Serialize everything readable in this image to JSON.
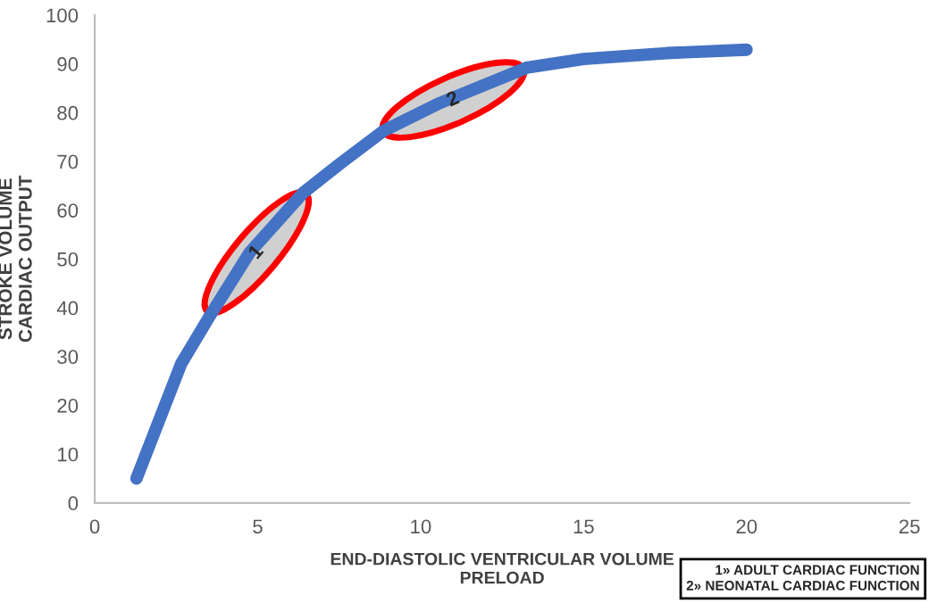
{
  "chart_data": {
    "type": "line",
    "xlabel": "END-DIASTOLIC VENTRICULAR VOLUME\nPRELOAD",
    "ylabel": "STROKE VOLUME\nCARDIAC OUTPUT",
    "x": [
      1.28,
      2.65,
      3.5,
      4.75,
      6.4,
      7.5,
      8.87,
      10.6,
      13.25,
      15,
      17.55,
      20
    ],
    "series": [
      {
        "color": "#4472c4",
        "values": [
          5,
          28.5,
          38,
          51.3,
          63.6,
          69.4,
          76.3,
          82,
          89.2,
          91,
          92.2,
          92.9
        ]
      }
    ],
    "xlim": [
      0,
      25
    ],
    "xticks": [
      0,
      5,
      10,
      15,
      20,
      25
    ],
    "ylim": [
      0,
      100
    ],
    "yticks": [
      0,
      10,
      20,
      30,
      40,
      50,
      60,
      70,
      80,
      90,
      100
    ],
    "grid": false,
    "legend": false,
    "marker": "none",
    "line_style": "solid",
    "annotations": [
      {
        "text": "1",
        "x": 4.97,
        "y": 51.3
      },
      {
        "text": "2",
        "x": 11.0,
        "y": 82.6
      },
      "1» ADULT CARDIAC FUNCTION",
      "2» NEONATAL CARDIAC FUNCTION"
    ]
  }
}
